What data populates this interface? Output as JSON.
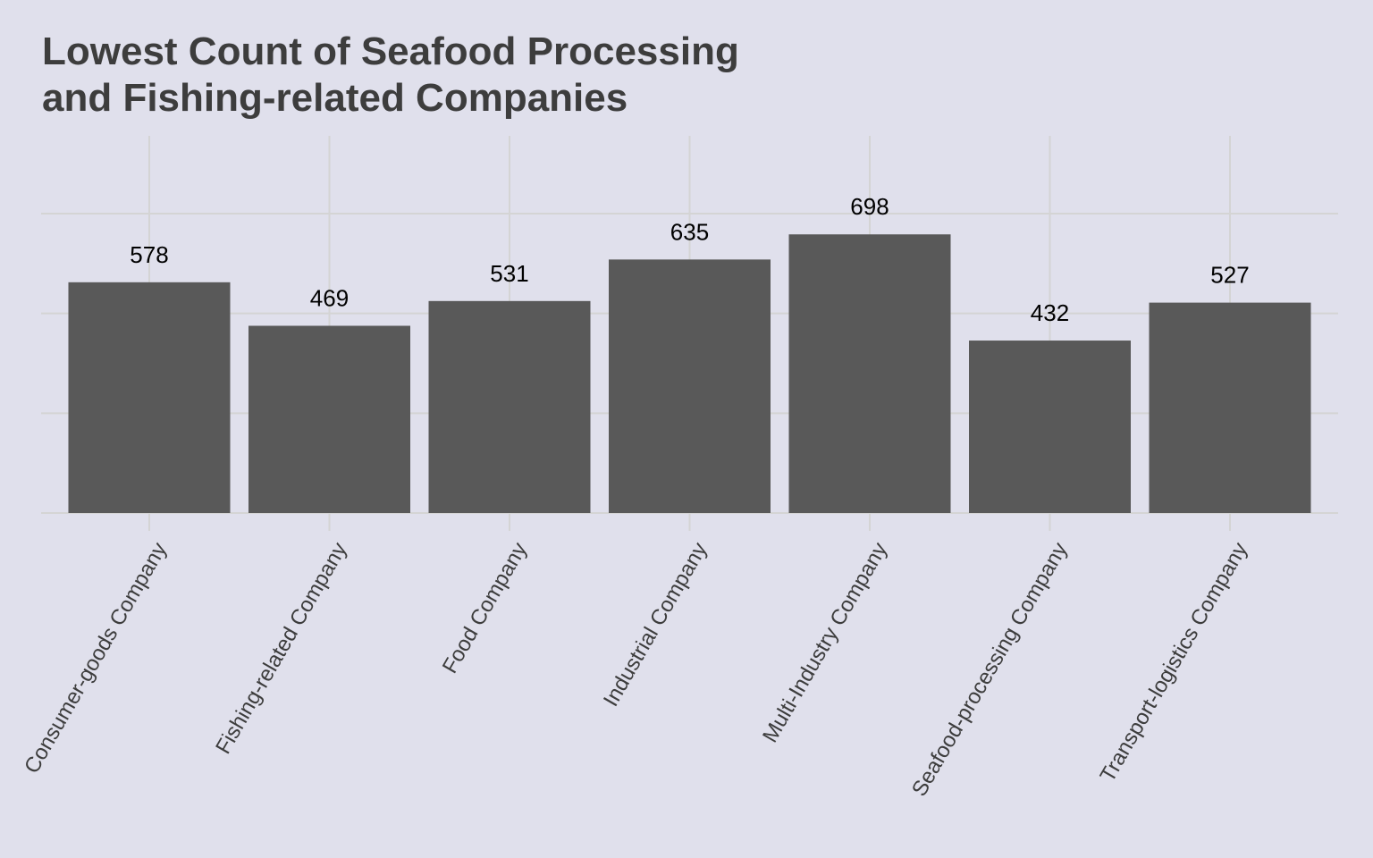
{
  "chart_data": {
    "type": "bar",
    "title_lines": [
      "Lowest Count of Seafood Processing",
      "and Fishing-related Companies"
    ],
    "xlabel": "",
    "ylabel": "",
    "categories": [
      "Consumer-goods Company",
      "Fishing-related Company",
      "Food Company",
      "Industrial Company",
      "Multi-Industry Company",
      "Seafood-processing Company",
      "Transport-logistics Company"
    ],
    "values": [
      578,
      469,
      531,
      635,
      698,
      432,
      527
    ],
    "ylim": [
      0,
      760
    ],
    "y_gridlines": [
      0,
      250,
      500,
      750
    ],
    "y_tick_labels_shown": false,
    "grid": true,
    "legend": "none",
    "colors": {
      "background": "#e0e0ec",
      "bar": "#595959",
      "grid": "#d4d4d4",
      "title": "#3d3d3d",
      "label": "#000000",
      "tick_label": "#3d3d3d"
    }
  }
}
